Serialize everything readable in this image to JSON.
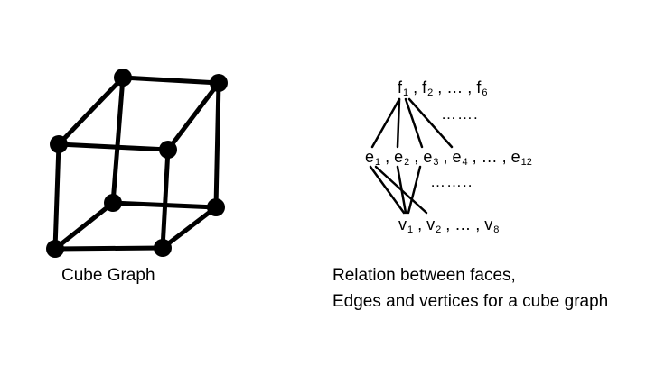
{
  "cube_caption": "Cube Graph",
  "relation_caption_line1": "Relation between faces,",
  "relation_caption_line2": "Edges and vertices for a cube graph",
  "faces_row": [
    {
      "base": "f",
      "sub": "1"
    },
    {
      "sep": " , "
    },
    {
      "base": "f",
      "sub": "2"
    },
    {
      "sep": " , … , "
    },
    {
      "base": "f",
      "sub": "6"
    }
  ],
  "edges_row": [
    {
      "base": "e",
      "sub": "1"
    },
    {
      "sep": " , "
    },
    {
      "base": "e",
      "sub": "2"
    },
    {
      "sep": " , "
    },
    {
      "base": "e",
      "sub": "3"
    },
    {
      "sep": " , "
    },
    {
      "base": "e",
      "sub": "4"
    },
    {
      "sep": " , … , "
    },
    {
      "base": "e",
      "sub": "12"
    }
  ],
  "vertices_row": [
    {
      "base": "v",
      "sub": "1"
    },
    {
      "sep": " , "
    },
    {
      "base": "v",
      "sub": "2"
    },
    {
      "sep": " , … , "
    },
    {
      "base": "v",
      "sub": "8"
    }
  ],
  "dots_upper": "…….",
  "dots_lower": "……..",
  "colors": {
    "line": "#000000",
    "background": "#ffffff"
  }
}
